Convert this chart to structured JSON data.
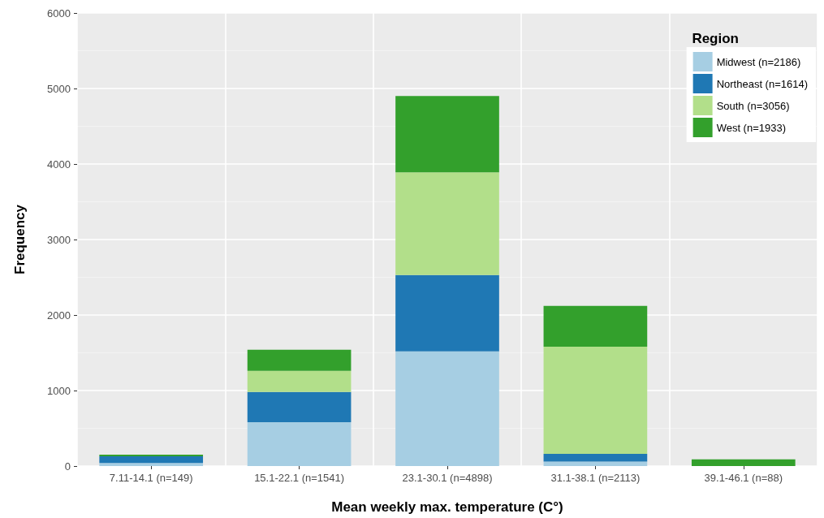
{
  "chart_data": {
    "type": "bar",
    "stacked": true,
    "xlabel": "Mean weekly max. temperature (C°)",
    "ylabel": "Frequency",
    "legend_title": "Region",
    "categories": [
      "7.11-14.1 (n=149)",
      "15.1-22.1 (n=1541)",
      "23.1-30.1 (n=4898)",
      "31.1-38.1 (n=2113)",
      "39.1-46.1 (n=88)"
    ],
    "series": [
      {
        "name": "Midwest (n=2186)",
        "color": "#a6cee3",
        "values": [
          40,
          580,
          1520,
          60,
          0
        ]
      },
      {
        "name": "Northeast (n=1614)",
        "color": "#1f78b4",
        "values": [
          90,
          400,
          1010,
          100,
          0
        ]
      },
      {
        "name": "South (n=3056)",
        "color": "#b2df8a",
        "values": [
          0,
          280,
          1360,
          1420,
          0
        ]
      },
      {
        "name": "West (n=1933)",
        "color": "#33a02c",
        "values": [
          20,
          280,
          1010,
          540,
          90
        ]
      }
    ],
    "ylim": [
      0,
      6000
    ],
    "yticks": [
      0,
      1000,
      2000,
      3000,
      4000,
      5000,
      6000
    ],
    "grid": true,
    "legend": "top right"
  }
}
